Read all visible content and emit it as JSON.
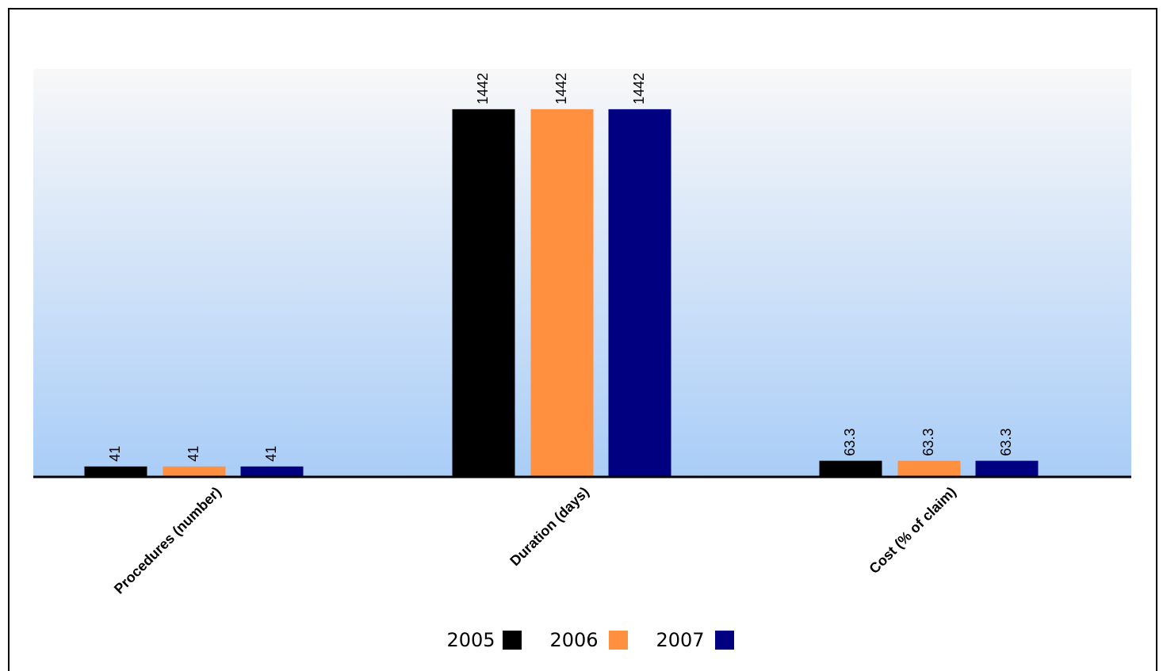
{
  "chart_data": {
    "type": "bar",
    "title": "",
    "xlabel": "",
    "ylabel": "",
    "categories": [
      "Procedures (number)",
      "Duration (days)",
      "Cost (% of claim)"
    ],
    "series": [
      {
        "name": "2005",
        "color": "#000000",
        "values": [
          41,
          1442,
          63.3
        ],
        "labels": [
          "41",
          "1442",
          "63.3"
        ]
      },
      {
        "name": "2006",
        "color": "#ff9040",
        "values": [
          41,
          1442,
          63.3
        ],
        "labels": [
          "41",
          "1442",
          "63.3"
        ]
      },
      {
        "name": "2007",
        "color": "#000080",
        "values": [
          41,
          1442,
          63.3
        ],
        "labels": [
          "41",
          "1442",
          "63.3"
        ]
      }
    ],
    "ylim": [
      0,
      1600
    ],
    "grid": false,
    "legend_position": "bottom-center",
    "background_gradient": [
      "#f8f8f8",
      "#a9cdf7"
    ]
  }
}
